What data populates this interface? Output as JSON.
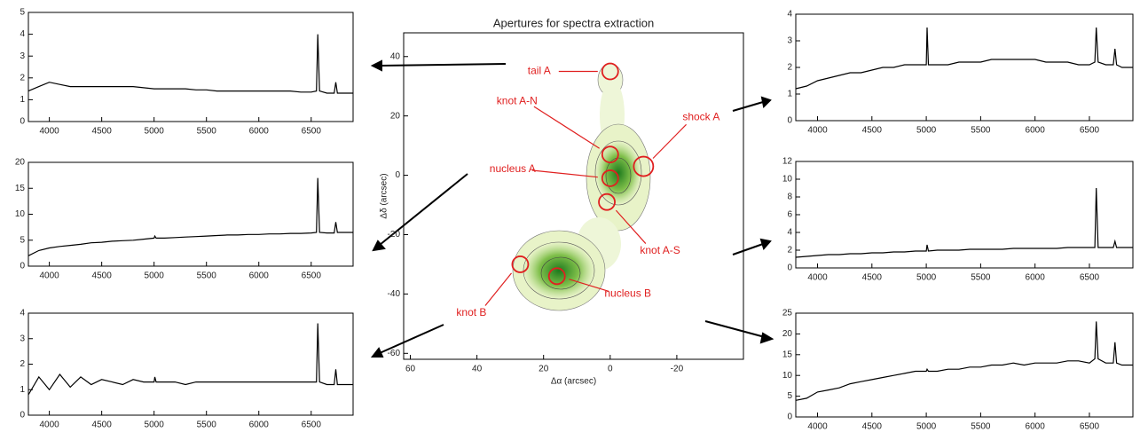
{
  "chart_data": [
    {
      "type": "scatter",
      "title": "Apertures for spectra extraction",
      "x_label": "Δα (arcsec)",
      "y_label": "Δδ (arcsec)",
      "labels": [
        "tail A",
        "knot A-N",
        "shock A",
        "nucleus A",
        "knot A-S",
        "knot B",
        "nucleus B"
      ],
      "x": [
        0,
        0,
        -10,
        0,
        1,
        27,
        16
      ],
      "values": [
        35,
        7,
        3,
        -1,
        -9,
        -30,
        -34
      ],
      "color": "#e02020",
      "xlim": [
        62,
        -40
      ],
      "xticks": [
        60,
        40,
        20,
        0,
        -20
      ],
      "ylim": [
        -62,
        48
      ],
      "yticks": [
        -60,
        -40,
        -20,
        0,
        20,
        40
      ]
    },
    {
      "type": "line",
      "x": [
        3800,
        3900,
        4000,
        4100,
        4200,
        4300,
        4400,
        4500,
        4600,
        4700,
        4800,
        4900,
        5000,
        5007,
        5020,
        5100,
        5200,
        5300,
        5400,
        5500,
        5600,
        5700,
        5800,
        5900,
        6000,
        6100,
        6200,
        6300,
        6400,
        6500,
        6550,
        6563,
        6580,
        6650,
        6720,
        6735,
        6750,
        6800,
        6900
      ],
      "values": [
        1.4,
        1.6,
        1.8,
        1.7,
        1.6,
        1.6,
        1.6,
        1.6,
        1.6,
        1.6,
        1.6,
        1.55,
        1.5,
        1.5,
        1.5,
        1.5,
        1.5,
        1.5,
        1.45,
        1.45,
        1.4,
        1.4,
        1.4,
        1.4,
        1.4,
        1.4,
        1.4,
        1.4,
        1.35,
        1.35,
        1.4,
        4.0,
        1.4,
        1.3,
        1.3,
        1.8,
        1.3,
        1.3,
        1.3
      ],
      "color": "#000000",
      "xlim": [
        3800,
        6900
      ],
      "xticks": [
        4000,
        4500,
        5000,
        5500,
        6000,
        6500
      ],
      "ylim": [
        0,
        5
      ],
      "yticks": [
        0,
        1,
        2,
        3,
        4,
        5
      ]
    },
    {
      "type": "line",
      "x": [
        3800,
        3900,
        4000,
        4100,
        4200,
        4300,
        4400,
        4500,
        4600,
        4700,
        4800,
        4900,
        5000,
        5007,
        5020,
        5100,
        5200,
        5300,
        5400,
        5500,
        5600,
        5700,
        5800,
        5900,
        6000,
        6100,
        6200,
        6300,
        6400,
        6500,
        6550,
        6563,
        6580,
        6650,
        6720,
        6735,
        6750,
        6800,
        6900
      ],
      "values": [
        2,
        3,
        3.5,
        3.8,
        4,
        4.2,
        4.5,
        4.6,
        4.8,
        4.9,
        5,
        5.2,
        5.4,
        5.8,
        5.4,
        5.4,
        5.5,
        5.6,
        5.7,
        5.8,
        5.9,
        6,
        6,
        6.1,
        6.1,
        6.2,
        6.2,
        6.3,
        6.3,
        6.4,
        6.5,
        17,
        6.5,
        6.4,
        6.4,
        8.5,
        6.5,
        6.5,
        6.5
      ],
      "color": "#000000",
      "xlim": [
        3800,
        6900
      ],
      "xticks": [
        4000,
        4500,
        5000,
        5500,
        6000,
        6500
      ],
      "ylim": [
        0,
        20
      ],
      "yticks": [
        0,
        5,
        10,
        15,
        20
      ]
    },
    {
      "type": "line",
      "x": [
        3800,
        3900,
        4000,
        4100,
        4200,
        4300,
        4400,
        4500,
        4600,
        4700,
        4800,
        4900,
        5000,
        5007,
        5020,
        5100,
        5200,
        5300,
        5400,
        5500,
        5600,
        5700,
        5800,
        5900,
        6000,
        6100,
        6200,
        6300,
        6400,
        6500,
        6550,
        6563,
        6580,
        6650,
        6720,
        6735,
        6750,
        6800,
        6900
      ],
      "values": [
        0.8,
        1.5,
        1.0,
        1.6,
        1.1,
        1.5,
        1.2,
        1.4,
        1.3,
        1.2,
        1.4,
        1.3,
        1.3,
        1.5,
        1.3,
        1.3,
        1.3,
        1.2,
        1.3,
        1.3,
        1.3,
        1.3,
        1.3,
        1.3,
        1.3,
        1.3,
        1.3,
        1.3,
        1.3,
        1.3,
        1.3,
        3.6,
        1.3,
        1.2,
        1.2,
        1.8,
        1.2,
        1.2,
        1.2
      ],
      "color": "#000000",
      "xlim": [
        3800,
        6900
      ],
      "xticks": [
        4000,
        4500,
        5000,
        5500,
        6000,
        6500
      ],
      "ylim": [
        0,
        4
      ],
      "yticks": [
        0,
        1,
        2,
        3,
        4
      ]
    },
    {
      "type": "line",
      "x": [
        3800,
        3900,
        4000,
        4100,
        4200,
        4300,
        4400,
        4500,
        4600,
        4700,
        4800,
        4900,
        5000,
        5007,
        5020,
        5100,
        5200,
        5300,
        5400,
        5500,
        5600,
        5700,
        5800,
        5900,
        6000,
        6100,
        6200,
        6300,
        6400,
        6500,
        6550,
        6563,
        6580,
        6650,
        6720,
        6735,
        6750,
        6800,
        6900
      ],
      "values": [
        1.2,
        1.3,
        1.5,
        1.6,
        1.7,
        1.8,
        1.8,
        1.9,
        2.0,
        2.0,
        2.1,
        2.1,
        2.1,
        3.5,
        2.1,
        2.1,
        2.1,
        2.2,
        2.2,
        2.2,
        2.3,
        2.3,
        2.3,
        2.3,
        2.3,
        2.2,
        2.2,
        2.2,
        2.1,
        2.1,
        2.2,
        3.5,
        2.2,
        2.1,
        2.1,
        2.7,
        2.1,
        2.0,
        2.0
      ],
      "color": "#000000",
      "xlim": [
        3800,
        6900
      ],
      "xticks": [
        4000,
        4500,
        5000,
        5500,
        6000,
        6500
      ],
      "ylim": [
        0,
        4
      ],
      "yticks": [
        0,
        1,
        2,
        3,
        4
      ]
    },
    {
      "type": "line",
      "x": [
        3800,
        3900,
        4000,
        4100,
        4200,
        4300,
        4400,
        4500,
        4600,
        4700,
        4800,
        4900,
        5000,
        5007,
        5020,
        5100,
        5200,
        5300,
        5400,
        5500,
        5600,
        5700,
        5800,
        5900,
        6000,
        6100,
        6200,
        6300,
        6400,
        6500,
        6550,
        6563,
        6580,
        6650,
        6720,
        6735,
        6750,
        6800,
        6900
      ],
      "values": [
        1.2,
        1.3,
        1.4,
        1.5,
        1.5,
        1.6,
        1.6,
        1.7,
        1.7,
        1.8,
        1.8,
        1.9,
        1.9,
        2.6,
        1.9,
        2.0,
        2.0,
        2.0,
        2.1,
        2.1,
        2.1,
        2.1,
        2.2,
        2.2,
        2.2,
        2.2,
        2.2,
        2.3,
        2.3,
        2.3,
        2.3,
        9,
        2.3,
        2.3,
        2.3,
        3,
        2.3,
        2.3,
        2.3
      ],
      "color": "#000000",
      "xlim": [
        3800,
        6900
      ],
      "xticks": [
        4000,
        4500,
        5000,
        5500,
        6000,
        6500
      ],
      "ylim": [
        0,
        12
      ],
      "yticks": [
        0,
        2,
        4,
        6,
        8,
        10,
        12
      ]
    },
    {
      "type": "line",
      "x": [
        3800,
        3900,
        4000,
        4100,
        4200,
        4300,
        4400,
        4500,
        4600,
        4700,
        4800,
        4900,
        5000,
        5007,
        5020,
        5100,
        5200,
        5300,
        5400,
        5500,
        5600,
        5700,
        5800,
        5900,
        6000,
        6100,
        6200,
        6300,
        6400,
        6500,
        6550,
        6563,
        6580,
        6650,
        6720,
        6735,
        6750,
        6800,
        6900
      ],
      "values": [
        4,
        4.5,
        6,
        6.5,
        7,
        8,
        8.5,
        9,
        9.5,
        10,
        10.5,
        11,
        11,
        11.5,
        11,
        11,
        11.5,
        11.5,
        12,
        12,
        12.5,
        12.5,
        13,
        12.5,
        13,
        13,
        13,
        13.5,
        13.5,
        13,
        14,
        23,
        14,
        13,
        13,
        18,
        13,
        12.5,
        12.5
      ],
      "color": "#000000",
      "xlim": [
        3800,
        6900
      ],
      "xticks": [
        4000,
        4500,
        5000,
        5500,
        6000,
        6500
      ],
      "ylim": [
        0,
        25
      ],
      "yticks": [
        0,
        5,
        10,
        15,
        20,
        25
      ]
    }
  ]
}
